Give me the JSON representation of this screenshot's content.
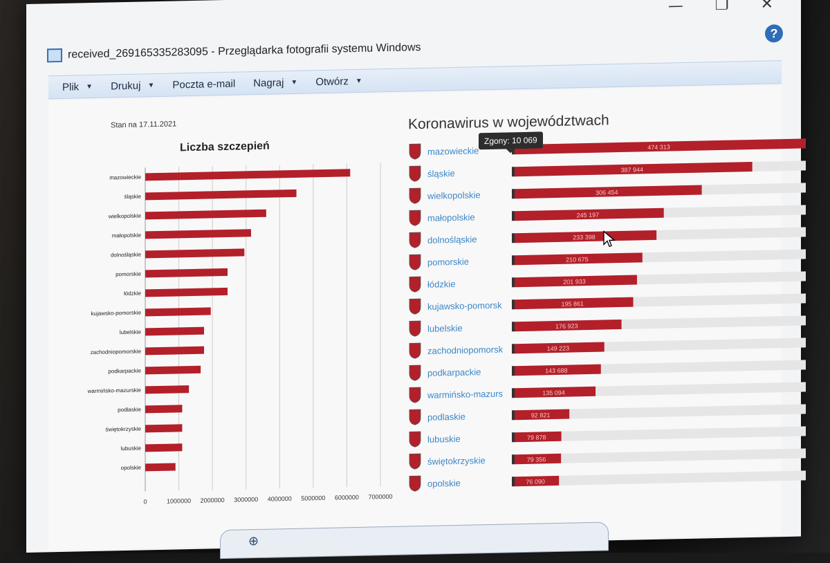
{
  "window": {
    "title": "received_269165335283095 - Przeglądarka fotografii systemu Windows",
    "controls": {
      "minimize": "—",
      "restore": "❐",
      "close": "✕"
    },
    "help": "?"
  },
  "menu": [
    {
      "label": "Plik",
      "has_caret": true
    },
    {
      "label": "Drukuj",
      "has_caret": true
    },
    {
      "label": "Poczta e-mail",
      "has_caret": false
    },
    {
      "label": "Nagraj",
      "has_caret": true
    },
    {
      "label": "Otwórz",
      "has_caret": true
    }
  ],
  "image": {
    "stan": "Stan na 17.11.2021",
    "left_title": "Liczba szczepień",
    "right_title": "Koronawirus w województwach",
    "tooltip": "Zgony: 10 069"
  },
  "chart_data": [
    {
      "type": "bar",
      "orientation": "horizontal",
      "title": "Liczba szczepień",
      "categories": [
        "mazowieckie",
        "śląskie",
        "wielkopolskie",
        "małopolskie",
        "dolnośląskie",
        "pomorskie",
        "łódzkie",
        "kujawsko-pomorskie",
        "lubelskie",
        "zachodniopomorskie",
        "podkarpackie",
        "warmińsko-mazurskie",
        "podlaskie",
        "świętokrzyskie",
        "lubuskie",
        "opolskie"
      ],
      "values": [
        6100000,
        4500000,
        3600000,
        3150000,
        2950000,
        2450000,
        2450000,
        1950000,
        1750000,
        1750000,
        1650000,
        1300000,
        1100000,
        1100000,
        1100000,
        900000
      ],
      "xlim": [
        0,
        7000000
      ],
      "xticks": [
        "0",
        "1000000",
        "2000000",
        "3000000",
        "4000000",
        "5000000",
        "6000000",
        "7000000"
      ],
      "color": "#b3202a",
      "grid": true
    },
    {
      "type": "bar",
      "orientation": "horizontal",
      "title": "Koronawirus w województwach",
      "categories": [
        "mazowieckie",
        "śląskie",
        "wielkopolskie",
        "małopolskie",
        "dolnośląskie",
        "pomorskie",
        "łódzkie",
        "kujawsko-pomorskie",
        "lubelskie",
        "zachodniopomorskie",
        "podkarpackie",
        "warmińsko-mazurskie",
        "podlaskie",
        "lubuskie",
        "świętokrzyskie",
        "opolskie"
      ],
      "display_labels": [
        "mazowieckie",
        "śląskie",
        "wielkopolskie",
        "małopolskie",
        "dolnośląskie",
        "pomorskie",
        "łódzkie",
        "kujawsko-pomorsk",
        "lubelskie",
        "zachodniopomorsk",
        "podkarpackie",
        "warmińsko-mazurs",
        "podlaskie",
        "lubuskie",
        "świętokrzyskie",
        "opolskie"
      ],
      "values": [
        474313,
        387944,
        306454,
        245197,
        233398,
        210675,
        201933,
        195861,
        176923,
        149223,
        143688,
        135094,
        92821,
        79878,
        79356,
        76090
      ],
      "value_labels": [
        "474 313",
        "387 944",
        "306 454",
        "245 197",
        "233 398",
        "210 675",
        "201 933",
        "195 861",
        "176 923",
        "149 223",
        "143 688",
        "135 094",
        "92 821",
        "79 878",
        "79 356",
        "76 090"
      ],
      "xlim": [
        0,
        474313
      ],
      "color": "#b3202a",
      "track_color": "#e6e6e6",
      "label_color": "#3b86c7"
    }
  ]
}
